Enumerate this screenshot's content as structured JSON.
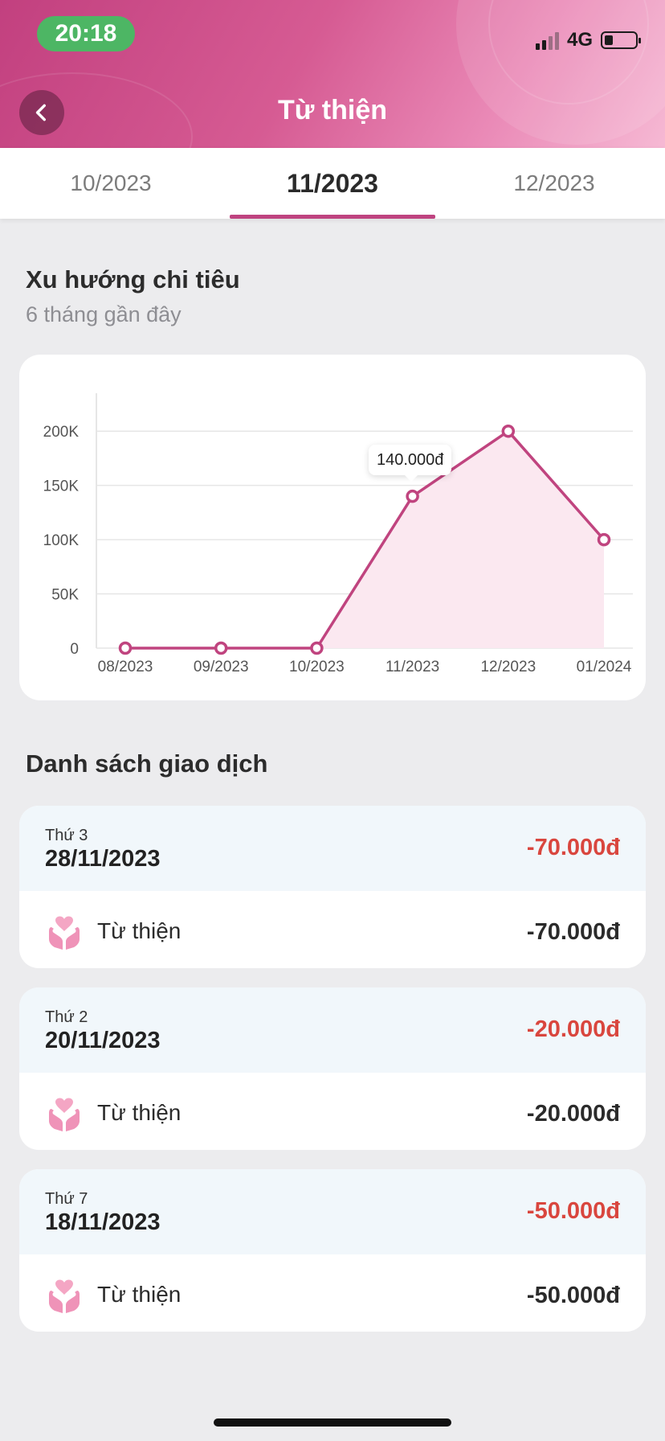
{
  "status_bar": {
    "time": "20:18",
    "network": "4G"
  },
  "header": {
    "title": "Từ thiện"
  },
  "tabs": [
    {
      "label": "10/2023",
      "active": false
    },
    {
      "label": "11/2023",
      "active": true
    },
    {
      "label": "12/2023",
      "active": false
    }
  ],
  "trend": {
    "title": "Xu hướng chi tiêu",
    "subtitle": "6 tháng gần đây"
  },
  "chart_data": {
    "type": "area",
    "categories": [
      "08/2023",
      "09/2023",
      "10/2023",
      "11/2023",
      "12/2023",
      "01/2024"
    ],
    "values": [
      0,
      0,
      0,
      140000,
      200000,
      100000
    ],
    "yticks": [
      0,
      50000,
      100000,
      150000,
      200000
    ],
    "ytick_labels": [
      "0",
      "50K",
      "100K",
      "150K",
      "200K"
    ],
    "ylim": [
      0,
      235000
    ],
    "grid": true,
    "line_color": "#c0447f",
    "fill_color": "#fbe8f0",
    "tooltip": "140.000đ"
  },
  "transactions_title": "Danh sách giao dịch",
  "transactions": [
    {
      "weekday": "Thứ 3",
      "date": "28/11/2023",
      "total": "-70.000đ",
      "category": "Từ thiện",
      "amount": "-70.000đ"
    },
    {
      "weekday": "Thứ 2",
      "date": "20/11/2023",
      "total": "-20.000đ",
      "category": "Từ thiện",
      "amount": "-20.000đ"
    },
    {
      "weekday": "Thứ 7",
      "date": "18/11/2023",
      "total": "-50.000đ",
      "category": "Từ thiện",
      "amount": "-50.000đ"
    }
  ],
  "colors": {
    "accent": "#bf4380",
    "negative": "#d9463e"
  }
}
